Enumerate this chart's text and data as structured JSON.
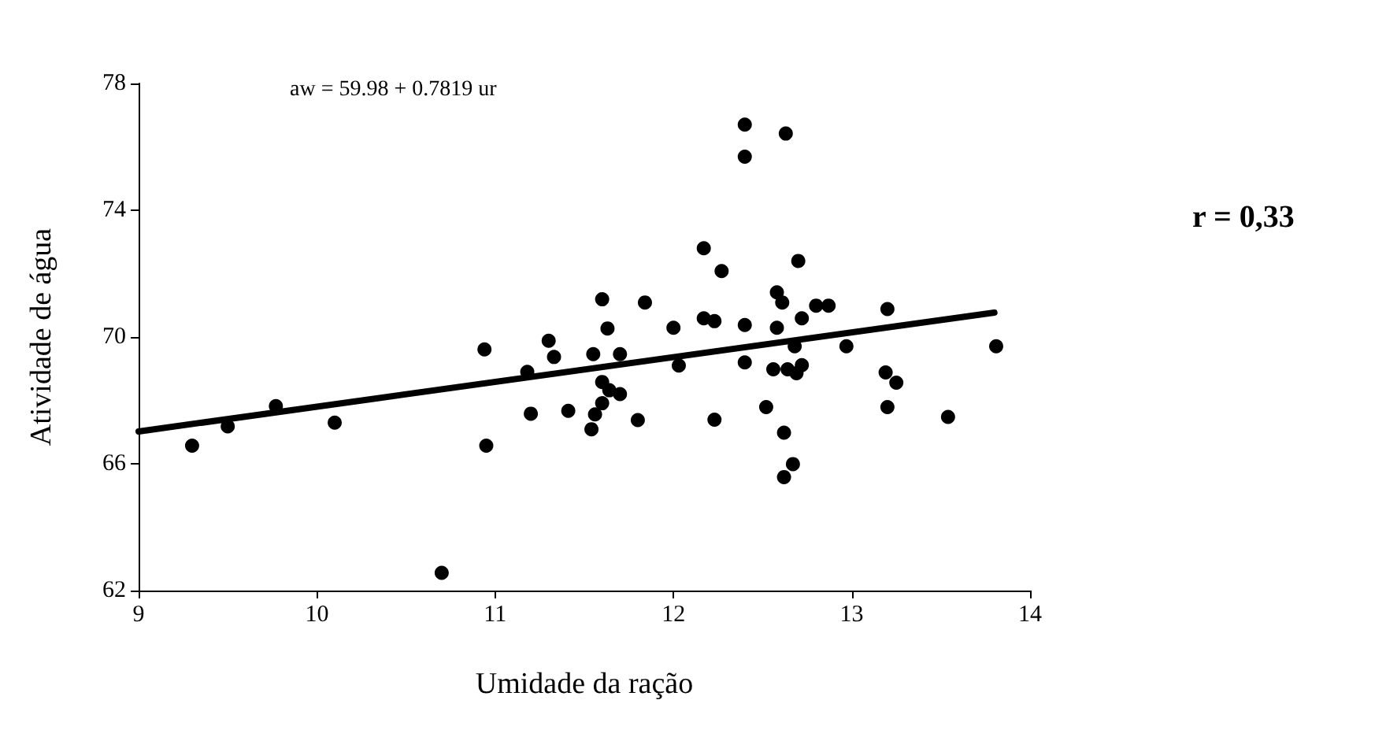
{
  "chart_data": {
    "type": "scatter",
    "xlabel": "Umidade da ração",
    "ylabel": "Atividade de água",
    "annotations": [
      "aw = 59.98 + 0.7819 ur",
      "r = 0,33"
    ],
    "xlim": [
      9,
      14
    ],
    "xticks": [
      9,
      10,
      11,
      12,
      13,
      14
    ],
    "ylim": [
      62,
      78
    ],
    "yticks": [
      62,
      66,
      70,
      74,
      78
    ],
    "grid": false,
    "marker": "circle",
    "series": [
      {
        "color": "#000000",
        "x": [
          9.3,
          9.5,
          9.77,
          10.1,
          10.7,
          10.94,
          10.95,
          11.18,
          11.2,
          11.3,
          11.33,
          11.41,
          11.54,
          11.55,
          11.56,
          11.6,
          11.63,
          11.7,
          11.6,
          11.64,
          11.7,
          11.6,
          11.8,
          11.84,
          12.0,
          12.03,
          12.17,
          12.17,
          12.23,
          12.23,
          12.27,
          12.4,
          12.4,
          12.63,
          12.4,
          12.4,
          12.52,
          12.56,
          12.58,
          12.61,
          12.58,
          12.62,
          12.67,
          12.62,
          12.7,
          12.72,
          12.68,
          12.64,
          12.69,
          12.72,
          12.8,
          12.87,
          12.97,
          13.2,
          13.19,
          13.25,
          13.2,
          13.54,
          13.81
        ],
        "values": [
          66.57,
          67.18,
          67.82,
          67.3,
          62.56,
          69.61,
          66.57,
          68.9,
          67.58,
          69.88,
          69.37,
          67.67,
          67.09,
          69.46,
          67.56,
          71.19,
          70.27,
          69.46,
          68.58,
          68.32,
          68.2,
          67.91,
          67.38,
          71.09,
          70.29,
          69.1,
          72.8,
          70.59,
          70.5,
          67.39,
          72.08,
          76.7,
          75.69,
          76.42,
          70.38,
          69.2,
          67.79,
          68.98,
          71.41,
          71.09,
          70.29,
          66.98,
          65.99,
          65.58,
          72.4,
          70.59,
          69.71,
          68.98,
          68.86,
          69.11,
          70.99,
          70.99,
          69.71,
          70.88,
          68.88,
          68.56,
          67.79,
          67.48,
          69.71
        ]
      },
      {
        "type": "line",
        "color": "#000000",
        "line_style": "solid",
        "marker": "none",
        "x": [
          9,
          13.8
        ],
        "values": [
          67.02,
          70.77
        ]
      }
    ]
  }
}
